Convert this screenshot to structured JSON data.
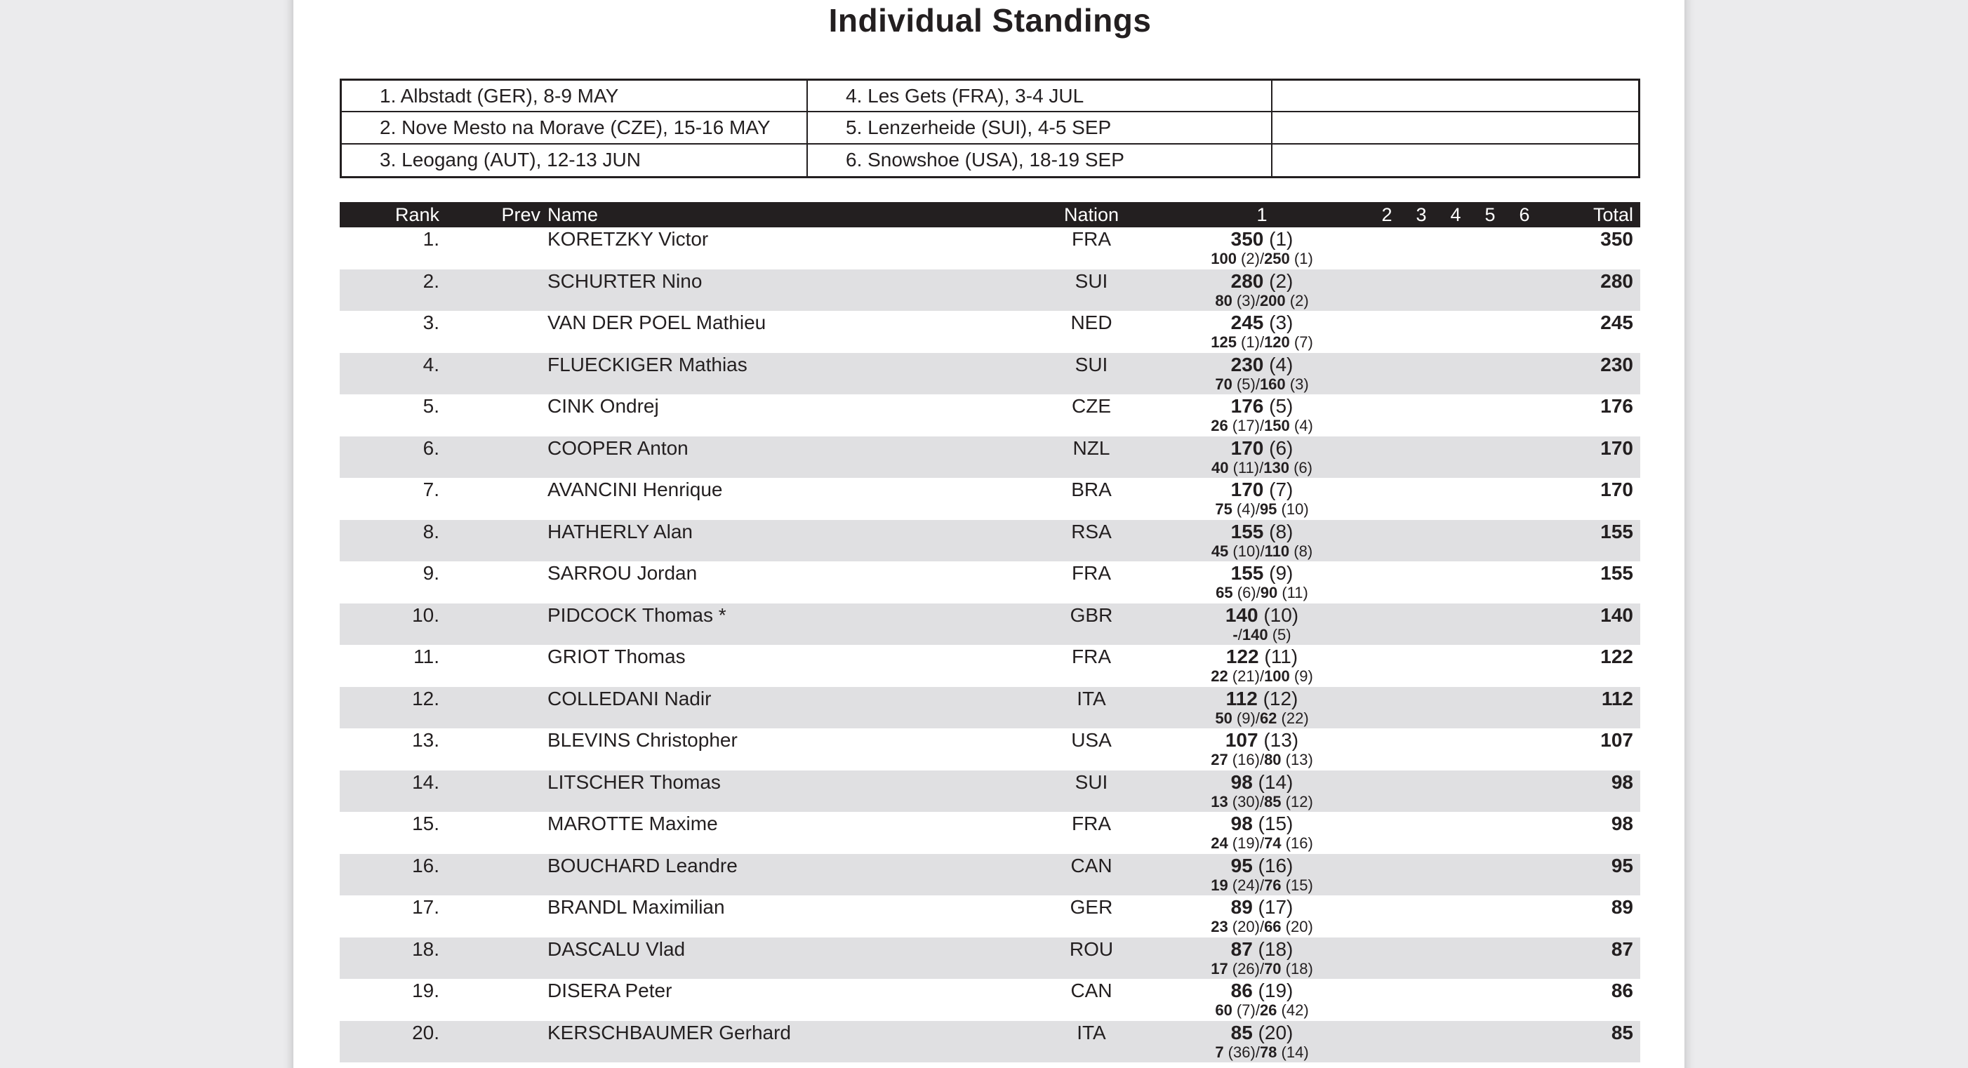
{
  "page": {
    "title": "Individual Standings"
  },
  "colors": {
    "canvas_bg": "#ebebed",
    "page_bg": "#ffffff",
    "header_bar": "#231f20",
    "row_alt": "#e0e0e2",
    "text": "#231f20"
  },
  "venues": {
    "rows": [
      [
        "1. Albstadt (GER), 8-9 MAY",
        "4. Les Gets (FRA), 3-4 JUL",
        ""
      ],
      [
        "2. Nove Mesto na Morave (CZE), 15-16 MAY",
        "5. Lenzerheide (SUI), 4-5 SEP",
        ""
      ],
      [
        "3. Leogang (AUT), 12-13 JUN",
        "6. Snowshoe (USA), 18-19 SEP",
        ""
      ]
    ]
  },
  "standings": {
    "headers": {
      "rank": "Rank",
      "prev": "Prev",
      "name": "Name",
      "nation": "Nation",
      "r1": "1",
      "r2": "2",
      "r3": "3",
      "r4": "4",
      "r5": "5",
      "r6": "6",
      "total": "Total"
    },
    "rows": [
      {
        "rank": "1.",
        "prev": "",
        "name": "KORETZKY Victor",
        "nation": "FRA",
        "pts": "350",
        "pos": " (1)",
        "s1": "100",
        "s1p": " (2)",
        "sep": "/",
        "s2": "250",
        "s2p": " (1)",
        "total": "350"
      },
      {
        "rank": "2.",
        "prev": "",
        "name": "SCHURTER Nino",
        "nation": "SUI",
        "pts": "280",
        "pos": " (2)",
        "s1": "80",
        "s1p": " (3)",
        "sep": "/",
        "s2": "200",
        "s2p": " (2)",
        "total": "280"
      },
      {
        "rank": "3.",
        "prev": "",
        "name": "VAN DER POEL Mathieu",
        "nation": "NED",
        "pts": "245",
        "pos": " (3)",
        "s1": "125",
        "s1p": " (1)",
        "sep": "/",
        "s2": "120",
        "s2p": " (7)",
        "total": "245"
      },
      {
        "rank": "4.",
        "prev": "",
        "name": "FLUECKIGER Mathias",
        "nation": "SUI",
        "pts": "230",
        "pos": " (4)",
        "s1": "70",
        "s1p": " (5)",
        "sep": "/",
        "s2": "160",
        "s2p": " (3)",
        "total": "230"
      },
      {
        "rank": "5.",
        "prev": "",
        "name": "CINK Ondrej",
        "nation": "CZE",
        "pts": "176",
        "pos": " (5)",
        "s1": "26",
        "s1p": " (17)",
        "sep": "/",
        "s2": "150",
        "s2p": " (4)",
        "total": "176"
      },
      {
        "rank": "6.",
        "prev": "",
        "name": "COOPER Anton",
        "nation": "NZL",
        "pts": "170",
        "pos": " (6)",
        "s1": "40",
        "s1p": " (11)",
        "sep": "/",
        "s2": "130",
        "s2p": " (6)",
        "total": "170"
      },
      {
        "rank": "7.",
        "prev": "",
        "name": "AVANCINI Henrique",
        "nation": "BRA",
        "pts": "170",
        "pos": " (7)",
        "s1": "75",
        "s1p": " (4)",
        "sep": "/",
        "s2": "95",
        "s2p": " (10)",
        "total": "170"
      },
      {
        "rank": "8.",
        "prev": "",
        "name": "HATHERLY Alan",
        "nation": "RSA",
        "pts": "155",
        "pos": " (8)",
        "s1": "45",
        "s1p": " (10)",
        "sep": "/",
        "s2": "110",
        "s2p": " (8)",
        "total": "155"
      },
      {
        "rank": "9.",
        "prev": "",
        "name": "SARROU Jordan",
        "nation": "FRA",
        "pts": "155",
        "pos": " (9)",
        "s1": "65",
        "s1p": " (6)",
        "sep": "/",
        "s2": "90",
        "s2p": " (11)",
        "total": "155"
      },
      {
        "rank": "10.",
        "prev": "",
        "name": "PIDCOCK Thomas *",
        "nation": "GBR",
        "pts": "140",
        "pos": " (10)",
        "s1": "-",
        "s1p": "",
        "sep": "/",
        "s2": "140",
        "s2p": " (5)",
        "total": "140"
      },
      {
        "rank": "11.",
        "prev": "",
        "name": "GRIOT Thomas",
        "nation": "FRA",
        "pts": "122",
        "pos": " (11)",
        "s1": "22",
        "s1p": " (21)",
        "sep": "/",
        "s2": "100",
        "s2p": " (9)",
        "total": "122"
      },
      {
        "rank": "12.",
        "prev": "",
        "name": "COLLEDANI Nadir",
        "nation": "ITA",
        "pts": "112",
        "pos": " (12)",
        "s1": "50",
        "s1p": " (9)",
        "sep": "/",
        "s2": "62",
        "s2p": " (22)",
        "total": "112"
      },
      {
        "rank": "13.",
        "prev": "",
        "name": "BLEVINS Christopher",
        "nation": "USA",
        "pts": "107",
        "pos": " (13)",
        "s1": "27",
        "s1p": " (16)",
        "sep": "/",
        "s2": "80",
        "s2p": " (13)",
        "total": "107"
      },
      {
        "rank": "14.",
        "prev": "",
        "name": "LITSCHER Thomas",
        "nation": "SUI",
        "pts": "98",
        "pos": " (14)",
        "s1": "13",
        "s1p": " (30)",
        "sep": "/",
        "s2": "85",
        "s2p": " (12)",
        "total": "98"
      },
      {
        "rank": "15.",
        "prev": "",
        "name": "MAROTTE Maxime",
        "nation": "FRA",
        "pts": "98",
        "pos": " (15)",
        "s1": "24",
        "s1p": " (19)",
        "sep": "/",
        "s2": "74",
        "s2p": " (16)",
        "total": "98"
      },
      {
        "rank": "16.",
        "prev": "",
        "name": "BOUCHARD Leandre",
        "nation": "CAN",
        "pts": "95",
        "pos": " (16)",
        "s1": "19",
        "s1p": " (24)",
        "sep": "/",
        "s2": "76",
        "s2p": " (15)",
        "total": "95"
      },
      {
        "rank": "17.",
        "prev": "",
        "name": "BRANDL Maximilian",
        "nation": "GER",
        "pts": "89",
        "pos": " (17)",
        "s1": "23",
        "s1p": " (20)",
        "sep": "/",
        "s2": "66",
        "s2p": " (20)",
        "total": "89"
      },
      {
        "rank": "18.",
        "prev": "",
        "name": "DASCALU Vlad",
        "nation": "ROU",
        "pts": "87",
        "pos": " (18)",
        "s1": "17",
        "s1p": " (26)",
        "sep": "/",
        "s2": "70",
        "s2p": " (18)",
        "total": "87"
      },
      {
        "rank": "19.",
        "prev": "",
        "name": "DISERA Peter",
        "nation": "CAN",
        "pts": "86",
        "pos": " (19)",
        "s1": "60",
        "s1p": " (7)",
        "sep": "/",
        "s2": "26",
        "s2p": " (42)",
        "total": "86"
      },
      {
        "rank": "20.",
        "prev": "",
        "name": "KERSCHBAUMER Gerhard",
        "nation": "ITA",
        "pts": "85",
        "pos": " (20)",
        "s1": "7",
        "s1p": " (36)",
        "sep": "/",
        "s2": "78",
        "s2p": " (14)",
        "total": "85"
      }
    ]
  }
}
